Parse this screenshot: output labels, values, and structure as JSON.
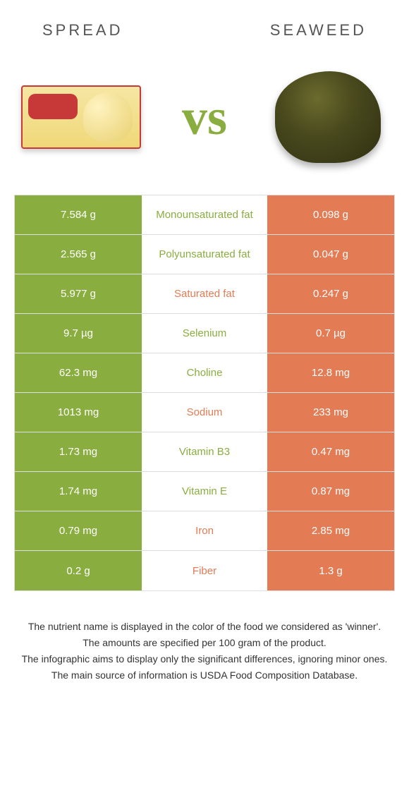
{
  "header": {
    "left": "Spread",
    "right": "Seaweed",
    "vs": "vs"
  },
  "colors": {
    "green": "#8aad3f",
    "orange": "#e37b54",
    "border": "#dddddd",
    "text": "#555555"
  },
  "table": {
    "rows": [
      {
        "left": "7.584 g",
        "label": "Monounsaturated fat",
        "right": "0.098 g",
        "winner": "left"
      },
      {
        "left": "2.565 g",
        "label": "Polyunsaturated fat",
        "right": "0.047 g",
        "winner": "left"
      },
      {
        "left": "5.977 g",
        "label": "Saturated fat",
        "right": "0.247 g",
        "winner": "right"
      },
      {
        "left": "9.7 µg",
        "label": "Selenium",
        "right": "0.7 µg",
        "winner": "left"
      },
      {
        "left": "62.3 mg",
        "label": "Choline",
        "right": "12.8 mg",
        "winner": "left"
      },
      {
        "left": "1013 mg",
        "label": "Sodium",
        "right": "233 mg",
        "winner": "right"
      },
      {
        "left": "1.73 mg",
        "label": "Vitamin B3",
        "right": "0.47 mg",
        "winner": "left"
      },
      {
        "left": "1.74 mg",
        "label": "Vitamin E",
        "right": "0.87 mg",
        "winner": "left"
      },
      {
        "left": "0.79 mg",
        "label": "Iron",
        "right": "2.85 mg",
        "winner": "right"
      },
      {
        "left": "0.2 g",
        "label": "Fiber",
        "right": "1.3 g",
        "winner": "right"
      }
    ]
  },
  "footer": {
    "line1": "The nutrient name is displayed in the color of the food we considered as 'winner'.",
    "line2": "The amounts are specified per 100 gram of the product.",
    "line3": "The infographic aims to display only the significant differences, ignoring minor ones.",
    "line4": "The main source of information is USDA Food Composition Database."
  }
}
